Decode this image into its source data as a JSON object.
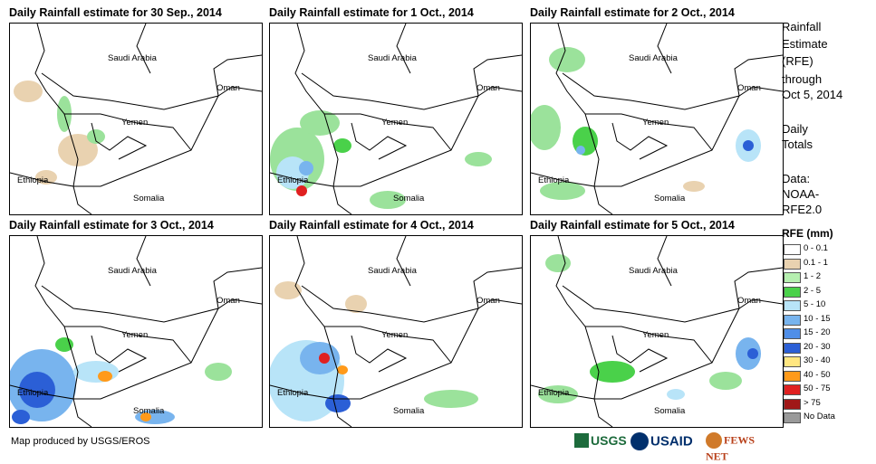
{
  "colors": {
    "green_light": "#9be29b",
    "green": "#4ad14a",
    "tan": "#e9d2b0",
    "blue_light": "#b8e4f8",
    "blue": "#78b4ee",
    "blue_mid": "#4f8ee8",
    "blue_dark": "#2b5fd6",
    "yellow": "#ffe680",
    "orange": "#ff9a1a",
    "red": "#e02020",
    "maroon": "#a01818",
    "gray": "#999999"
  },
  "panels": [
    {
      "title": "Daily Rainfall estimate for 30 Sep., 2014",
      "labels": {
        "saudi": "Saudi Arabia",
        "oman": "Oman",
        "yemen": "Yemen",
        "ethiopia": "Ethiopia",
        "somalia": "Somalia"
      }
    },
    {
      "title": "Daily Rainfall estimate for 1 Oct., 2014",
      "labels": {
        "saudi": "Saudi Arabia",
        "oman": "Oman",
        "yemen": "Yemen",
        "ethiopia": "Ethiopia",
        "somalia": "Somalia"
      }
    },
    {
      "title": "Daily Rainfall estimate for 2 Oct., 2014",
      "labels": {
        "saudi": "Saudi Arabia",
        "oman": "Oman",
        "yemen": "Yemen",
        "ethiopia": "Ethiopia",
        "somalia": "Somalia"
      }
    },
    {
      "title": "Daily Rainfall estimate for 3 Oct., 2014",
      "labels": {
        "saudi": "Saudi Arabia",
        "oman": "Oman",
        "yemen": "Yemen",
        "ethiopia": "Ethiopia",
        "somalia": "Somalia"
      }
    },
    {
      "title": "Daily Rainfall estimate for 4 Oct., 2014",
      "labels": {
        "saudi": "Saudi Arabia",
        "oman": "Oman",
        "yemen": "Yemen",
        "ethiopia": "Ethiopia",
        "somalia": "Somalia"
      }
    },
    {
      "title": "Daily Rainfall estimate for 5 Oct., 2014",
      "labels": {
        "saudi": "Saudi Arabia",
        "oman": "Oman",
        "yemen": "Yemen",
        "ethiopia": "Ethiopia",
        "somalia": "Somalia"
      }
    }
  ],
  "sidebar": {
    "line1": "Rainfall",
    "line2": "Estimate",
    "line3": "(RFE)",
    "line4": "through",
    "line5": "Oct 5, 2014",
    "daily1": "Daily",
    "daily2": "Totals",
    "data1": "Data:",
    "data2": "NOAA-",
    "data3": "RFE2.0"
  },
  "legend": {
    "title": "RFE (mm)",
    "items": [
      {
        "label": "0 - 0.1",
        "color": "#ffffff"
      },
      {
        "label": "0.1 - 1",
        "color": "#e9d2b0"
      },
      {
        "label": "1 - 2",
        "color": "#b6efb0"
      },
      {
        "label": "2 - 5",
        "color": "#4ad14a"
      },
      {
        "label": "5 - 10",
        "color": "#b8e4f8"
      },
      {
        "label": "10 - 15",
        "color": "#78b4ee"
      },
      {
        "label": "15 - 20",
        "color": "#4f8ee8"
      },
      {
        "label": "20 - 30",
        "color": "#2b5fd6"
      },
      {
        "label": "30 - 40",
        "color": "#ffe680"
      },
      {
        "label": "40 - 50",
        "color": "#ff9a1a"
      },
      {
        "label": "50 - 75",
        "color": "#e02020"
      },
      {
        "label": "> 75",
        "color": "#a01818"
      },
      {
        "label": "No Data",
        "color": "#999999"
      }
    ]
  },
  "footer": {
    "credit": "Map produced by USGS/EROS"
  },
  "logos": {
    "usgs": "USGS",
    "usaid": "USAID",
    "fews": "FEWS NET"
  }
}
